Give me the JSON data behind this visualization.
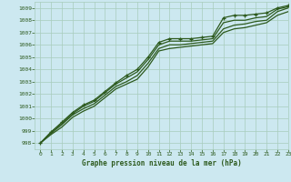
{
  "title": "Graphe pression niveau de la mer (hPa)",
  "background_color": "#cce8f0",
  "grid_color": "#a8ccbc",
  "line_color": "#2d5a1e",
  "xlim": [
    -0.5,
    23
  ],
  "ylim": [
    997.5,
    1009.5
  ],
  "yticks": [
    998,
    999,
    1000,
    1001,
    1002,
    1003,
    1004,
    1005,
    1006,
    1007,
    1008,
    1009
  ],
  "xticks": [
    0,
    1,
    2,
    3,
    4,
    5,
    6,
    7,
    8,
    9,
    10,
    11,
    12,
    13,
    14,
    15,
    16,
    17,
    18,
    19,
    20,
    21,
    22,
    23
  ],
  "line1_x": [
    0,
    1,
    2,
    3,
    4,
    5,
    6,
    7,
    8,
    9,
    10,
    11,
    12,
    13,
    14,
    15,
    16,
    17,
    18,
    19,
    20,
    21,
    22,
    23
  ],
  "line1_y": [
    998.0,
    998.9,
    999.7,
    1000.5,
    1001.1,
    1001.5,
    1002.2,
    1002.9,
    1003.5,
    1004.0,
    1005.0,
    1006.2,
    1006.5,
    1006.5,
    1006.5,
    1006.6,
    1006.7,
    1008.2,
    1008.4,
    1008.4,
    1008.5,
    1008.6,
    1009.0,
    1009.2
  ],
  "line2_x": [
    0,
    1,
    2,
    3,
    4,
    5,
    6,
    7,
    8,
    9,
    10,
    11,
    12,
    13,
    14,
    15,
    16,
    17,
    18,
    19,
    20,
    21,
    22,
    23
  ],
  "line2_y": [
    998.0,
    998.9,
    999.6,
    1000.4,
    1001.0,
    1001.4,
    1002.1,
    1002.8,
    1003.3,
    1003.8,
    1004.8,
    1006.0,
    1006.3,
    1006.3,
    1006.3,
    1006.4,
    1006.5,
    1007.8,
    1008.0,
    1008.0,
    1008.2,
    1008.3,
    1008.9,
    1009.1
  ],
  "line3_x": [
    0,
    1,
    2,
    3,
    4,
    5,
    6,
    7,
    8,
    9,
    10,
    11,
    12,
    13,
    14,
    15,
    16,
    17,
    18,
    19,
    20,
    21,
    22,
    23
  ],
  "line3_y": [
    998.0,
    998.8,
    999.5,
    1000.3,
    1000.8,
    1001.2,
    1001.9,
    1002.6,
    1003.0,
    1003.5,
    1004.5,
    1005.7,
    1006.0,
    1006.0,
    1006.1,
    1006.2,
    1006.3,
    1007.3,
    1007.6,
    1007.7,
    1007.9,
    1008.0,
    1008.7,
    1009.0
  ],
  "line4_x": [
    0,
    1,
    2,
    3,
    4,
    5,
    6,
    7,
    8,
    9,
    10,
    11,
    12,
    13,
    14,
    15,
    16,
    17,
    18,
    19,
    20,
    21,
    22,
    23
  ],
  "line4_y": [
    998.0,
    998.7,
    999.3,
    1000.1,
    1000.6,
    1001.0,
    1001.7,
    1002.4,
    1002.8,
    1003.2,
    1004.2,
    1005.5,
    1005.7,
    1005.8,
    1005.9,
    1006.0,
    1006.1,
    1007.0,
    1007.3,
    1007.4,
    1007.6,
    1007.8,
    1008.4,
    1008.7
  ]
}
